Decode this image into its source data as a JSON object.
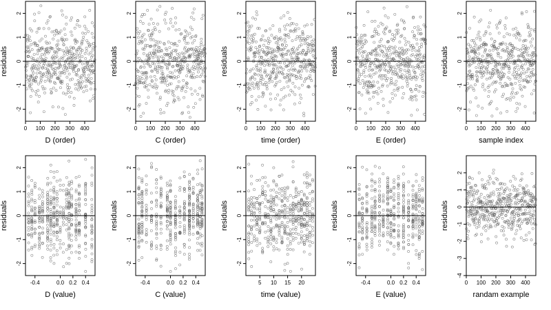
{
  "figure": {
    "point_color": "#555555",
    "line_color": "#000000",
    "background": "#ffffff"
  },
  "chart_data": [
    {
      "type": "scatter",
      "xlabel": "D (order)",
      "ylabel": "residuals",
      "xlim": [
        0,
        470
      ],
      "ylim": [
        -2.5,
        2.5
      ],
      "xticks": [
        0,
        100,
        200,
        300,
        400
      ],
      "yticks": [
        -2,
        -1,
        0,
        1,
        2
      ],
      "hline": 0,
      "x_mode": "order",
      "n": 470,
      "seed": 11
    },
    {
      "type": "scatter",
      "xlabel": "C (order)",
      "ylabel": "residuals",
      "xlim": [
        0,
        470
      ],
      "ylim": [
        -2.5,
        2.5
      ],
      "xticks": [
        0,
        100,
        200,
        300,
        400
      ],
      "yticks": [
        -2,
        -1,
        0,
        1,
        2
      ],
      "hline": 0,
      "x_mode": "order",
      "n": 470,
      "seed": 23
    },
    {
      "type": "scatter",
      "xlabel": "time (order)",
      "ylabel": "residuals",
      "xlim": [
        0,
        470
      ],
      "ylim": [
        -2.5,
        2.5
      ],
      "xticks": [
        0,
        100,
        200,
        300,
        400
      ],
      "yticks": [
        -2,
        -1,
        0,
        1,
        2
      ],
      "hline": 0,
      "x_mode": "order",
      "n": 470,
      "seed": 37
    },
    {
      "type": "scatter",
      "xlabel": "E (order)",
      "ylabel": "residuals",
      "xlim": [
        0,
        470
      ],
      "ylim": [
        -2.5,
        2.5
      ],
      "xticks": [
        0,
        100,
        200,
        300,
        400
      ],
      "yticks": [
        -2,
        -1,
        0,
        1,
        2
      ],
      "hline": 0,
      "x_mode": "order",
      "n": 470,
      "seed": 41
    },
    {
      "type": "scatter",
      "xlabel": "sample index",
      "ylabel": "residuals",
      "xlim": [
        0,
        470
      ],
      "ylim": [
        -2.5,
        2.5
      ],
      "xticks": [
        0,
        100,
        200,
        300,
        400
      ],
      "yticks": [
        -2,
        -1,
        0,
        1,
        2
      ],
      "hline": 0,
      "x_mode": "order",
      "n": 470,
      "seed": 53
    },
    {
      "type": "scatter",
      "xlabel": "D (value)",
      "ylabel": "residuals",
      "xlim": [
        -0.55,
        0.55
      ],
      "ylim": [
        -2.5,
        2.5
      ],
      "xticks": [
        -0.4,
        0.0,
        0.2,
        0.4
      ],
      "xtick_labels": [
        "-0.4",
        "0.0",
        "0.2",
        "0.4"
      ],
      "yticks": [
        -2,
        -1,
        0,
        1,
        2
      ],
      "hline": 0,
      "x_mode": "clustered",
      "x_levels": [
        -0.5,
        -0.45,
        -0.4,
        -0.33,
        -0.28,
        -0.2,
        -0.15,
        -0.1,
        -0.05,
        0.0,
        0.05,
        0.1,
        0.14,
        0.18,
        0.25,
        0.3,
        0.4,
        0.5
      ],
      "n": 470,
      "seed": 61
    },
    {
      "type": "scatter",
      "xlabel": "C (value)",
      "ylabel": "residuals",
      "xlim": [
        -0.55,
        0.55
      ],
      "ylim": [
        -2.5,
        2.5
      ],
      "xticks": [
        -0.4,
        0.0,
        0.2,
        0.4
      ],
      "xtick_labels": [
        "-0.4",
        "0.0",
        "0.2",
        "0.4"
      ],
      "yticks": [
        -2,
        -1,
        0,
        1,
        2
      ],
      "hline": 0,
      "x_mode": "clustered",
      "x_levels": [
        -0.5,
        -0.45,
        -0.38,
        -0.3,
        -0.22,
        -0.15,
        -0.05,
        0.0,
        0.08,
        0.15,
        0.22,
        0.3,
        0.36,
        0.43,
        0.47,
        0.5
      ],
      "n": 470,
      "seed": 71
    },
    {
      "type": "scatter",
      "xlabel": "time (value)",
      "ylabel": "residuals",
      "xlim": [
        0,
        25
      ],
      "ylim": [
        -2.5,
        2.5
      ],
      "xticks": [
        5,
        10,
        15,
        20
      ],
      "xtick_labels": [
        "5",
        "10",
        "15",
        "20"
      ],
      "yticks": [
        -2,
        -1,
        0,
        1,
        2
      ],
      "hline": 0,
      "x_mode": "clustered",
      "x_levels": [
        1,
        2,
        3,
        4,
        5,
        6,
        7,
        8,
        9,
        10,
        11,
        12,
        13,
        14,
        15,
        16,
        17,
        18,
        19,
        20,
        21,
        22,
        23,
        24
      ],
      "n": 470,
      "seed": 83
    },
    {
      "type": "scatter",
      "xlabel": "E (value)",
      "ylabel": "residuals",
      "xlim": [
        -0.55,
        0.55
      ],
      "ylim": [
        -2.5,
        2.5
      ],
      "xticks": [
        -0.4,
        0.0,
        0.2,
        0.4
      ],
      "xtick_labels": [
        "-0.4",
        "0.0",
        "0.2",
        "0.4"
      ],
      "yticks": [
        -2,
        -1,
        0,
        1,
        2
      ],
      "hline": 0,
      "x_mode": "clustered",
      "x_levels": [
        -0.5,
        -0.45,
        -0.38,
        -0.3,
        -0.25,
        -0.18,
        -0.12,
        -0.05,
        0.0,
        0.05,
        0.12,
        0.2,
        0.28,
        0.35,
        0.4,
        0.45,
        0.5
      ],
      "n": 470,
      "seed": 97
    },
    {
      "type": "scatter",
      "xlabel": "randam example",
      "ylabel": "residuals",
      "xlim": [
        0,
        470
      ],
      "ylim": [
        -4,
        3
      ],
      "xticks": [
        0,
        100,
        200,
        300,
        400
      ],
      "yticks": [
        -4,
        -3,
        -2,
        -1,
        0,
        1,
        2
      ],
      "hline": 0,
      "x_mode": "order",
      "n": 470,
      "seed": 101
    }
  ]
}
